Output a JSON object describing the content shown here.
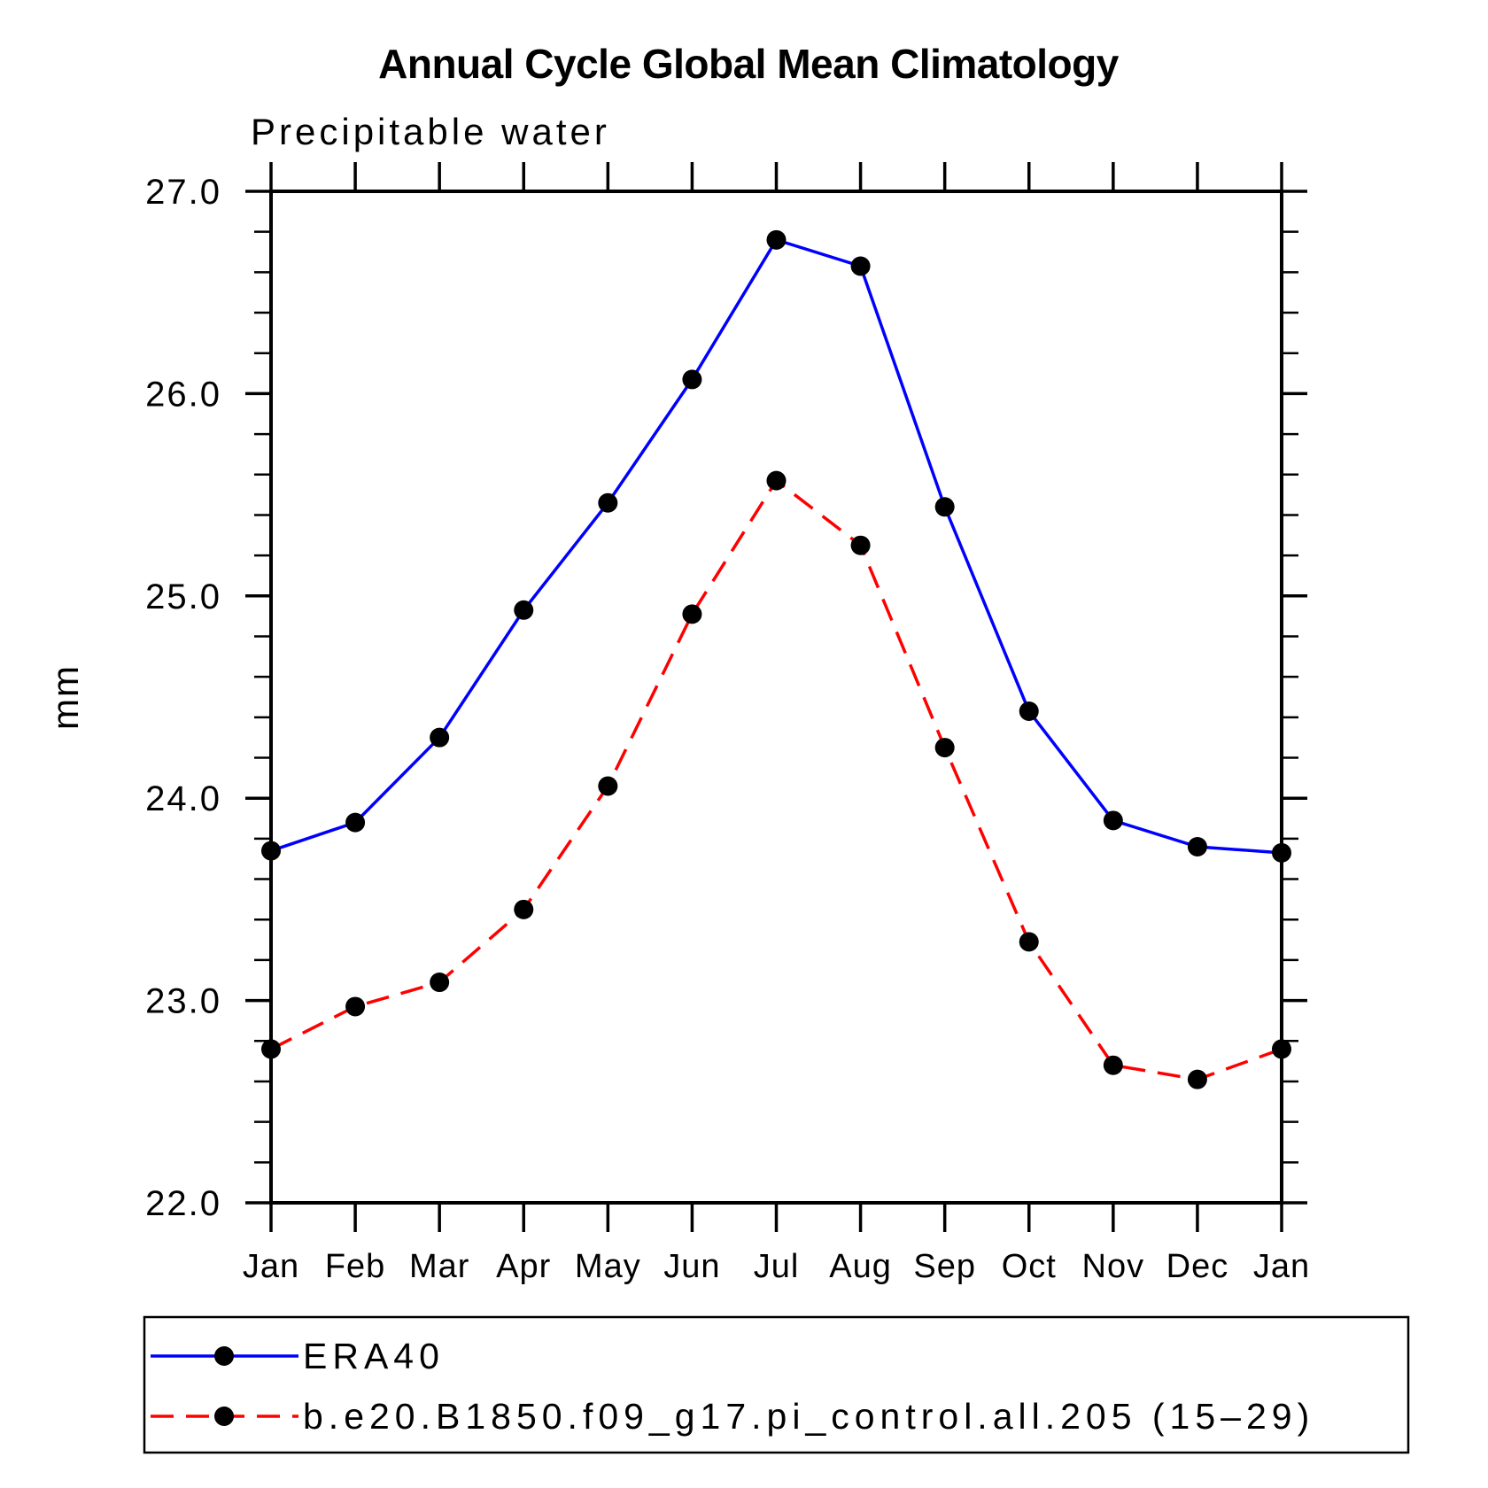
{
  "title": "Annual Cycle Global Mean Climatology",
  "subtitle": "Precipitable water",
  "y_axis": {
    "label": "mm",
    "tick_labels": [
      "22.0",
      "23.0",
      "24.0",
      "25.0",
      "26.0",
      "27.0"
    ]
  },
  "x_axis": {
    "labels": [
      "Jan",
      "Feb",
      "Mar",
      "Apr",
      "May",
      "Jun",
      "Jul",
      "Aug",
      "Sep",
      "Oct",
      "Nov",
      "Dec",
      "Jan"
    ]
  },
  "legend": {
    "entries": [
      {
        "label": "ERA40",
        "color": "#0000ff",
        "line_style": "solid",
        "marker": "black-dot"
      },
      {
        "label": "b.e20.B1850.f09_g17.pi_control.all.205 (15–29)",
        "color": "#ff0000",
        "line_style": "dashed",
        "marker": "black-dot"
      }
    ]
  },
  "chart_data": {
    "type": "line",
    "title": "Annual Cycle Global Mean Climatology",
    "subtitle": "Precipitable water",
    "xlabel": "",
    "ylabel": "mm",
    "ylim": [
      22.0,
      27.0
    ],
    "y_major_step": 1.0,
    "y_minor_step": 0.2,
    "grid": false,
    "legend_position": "bottom",
    "marker": {
      "shape": "circle",
      "color": "#000000"
    },
    "categories": [
      "Jan",
      "Feb",
      "Mar",
      "Apr",
      "May",
      "Jun",
      "Jul",
      "Aug",
      "Sep",
      "Oct",
      "Nov",
      "Dec",
      "Jan"
    ],
    "series": [
      {
        "name": "ERA40",
        "color": "#0000ff",
        "line_style": "solid",
        "values": [
          23.74,
          23.88,
          24.3,
          24.93,
          25.46,
          26.07,
          26.76,
          26.63,
          25.44,
          24.43,
          23.89,
          23.76,
          23.73
        ]
      },
      {
        "name": "b.e20.B1850.f09_g17.pi_control.all.205 (15–29)",
        "color": "#ff0000",
        "line_style": "dashed",
        "values": [
          22.76,
          22.97,
          23.09,
          23.45,
          24.06,
          24.91,
          25.57,
          25.25,
          24.25,
          23.29,
          22.68,
          22.61,
          22.76
        ]
      }
    ]
  }
}
